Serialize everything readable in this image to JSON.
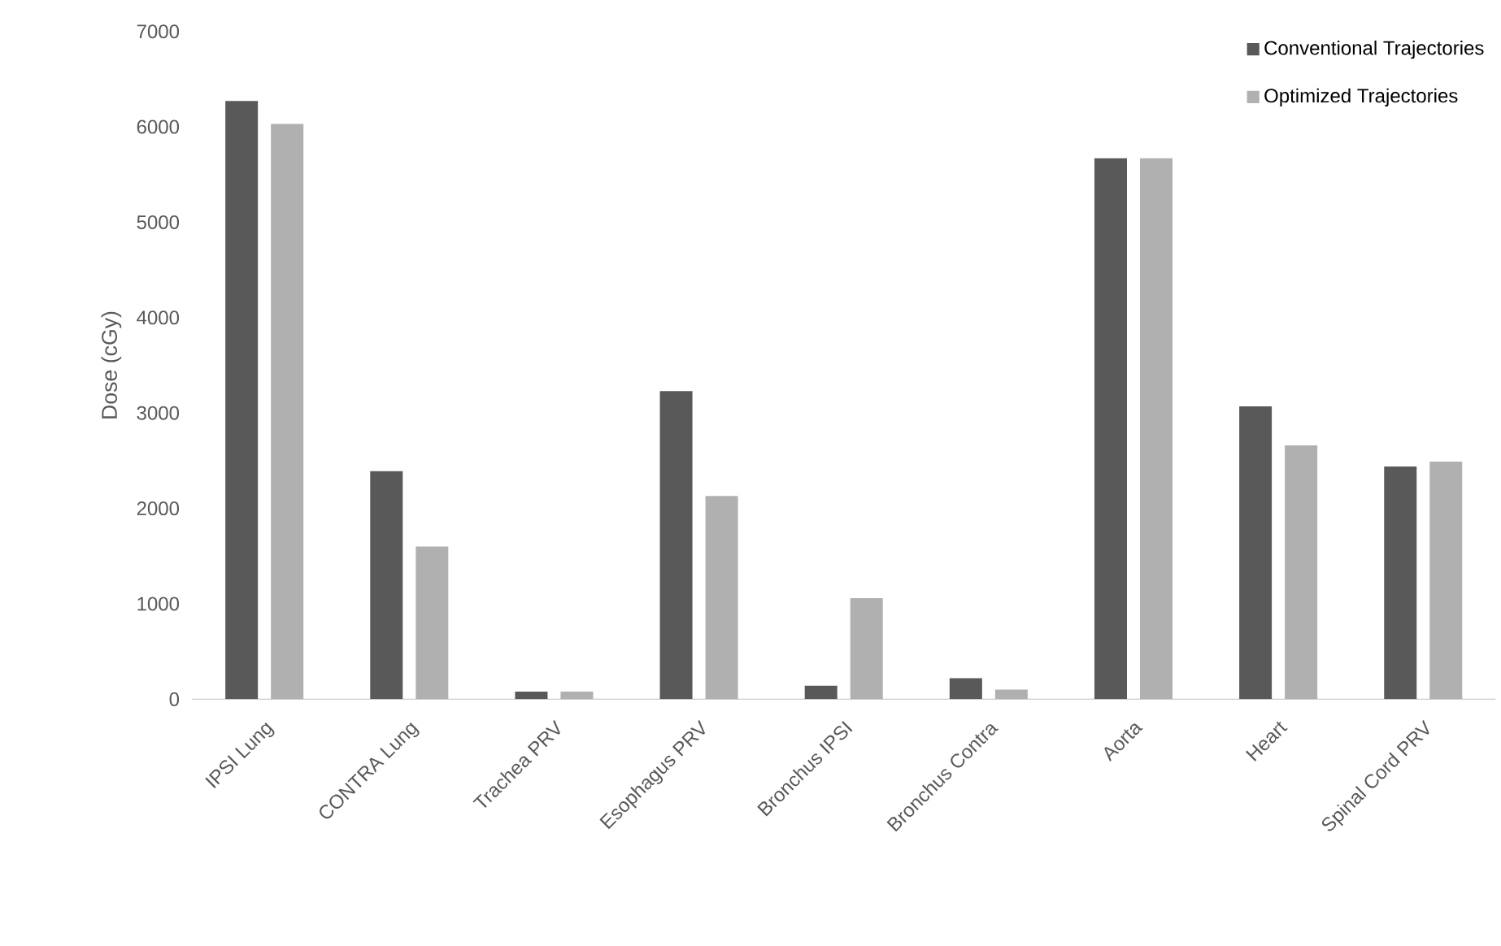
{
  "chart_data": {
    "type": "bar",
    "ylabel": "Dose (cGy)",
    "categories": [
      "IPSI Lung",
      "CONTRA Lung",
      "Trachea PRV",
      "Esophagus PRV",
      "Bronchus IPSI",
      "Bronchus Contra",
      "Aorta",
      "Heart",
      "Spinal Cord PRV"
    ],
    "series": [
      {
        "name": "Conventional Trajectories",
        "color": "#595959",
        "values": [
          6270,
          2390,
          80,
          3230,
          140,
          220,
          5670,
          3070,
          2440
        ]
      },
      {
        "name": "Optimized Trajectories",
        "color": "#b0b0b0",
        "values": [
          6030,
          1600,
          80,
          2130,
          1060,
          100,
          5670,
          2660,
          2490
        ]
      }
    ],
    "ylim": [
      0,
      7000
    ],
    "yticks": [
      0,
      1000,
      2000,
      3000,
      4000,
      5000,
      6000,
      7000
    ],
    "legend": "top right"
  }
}
